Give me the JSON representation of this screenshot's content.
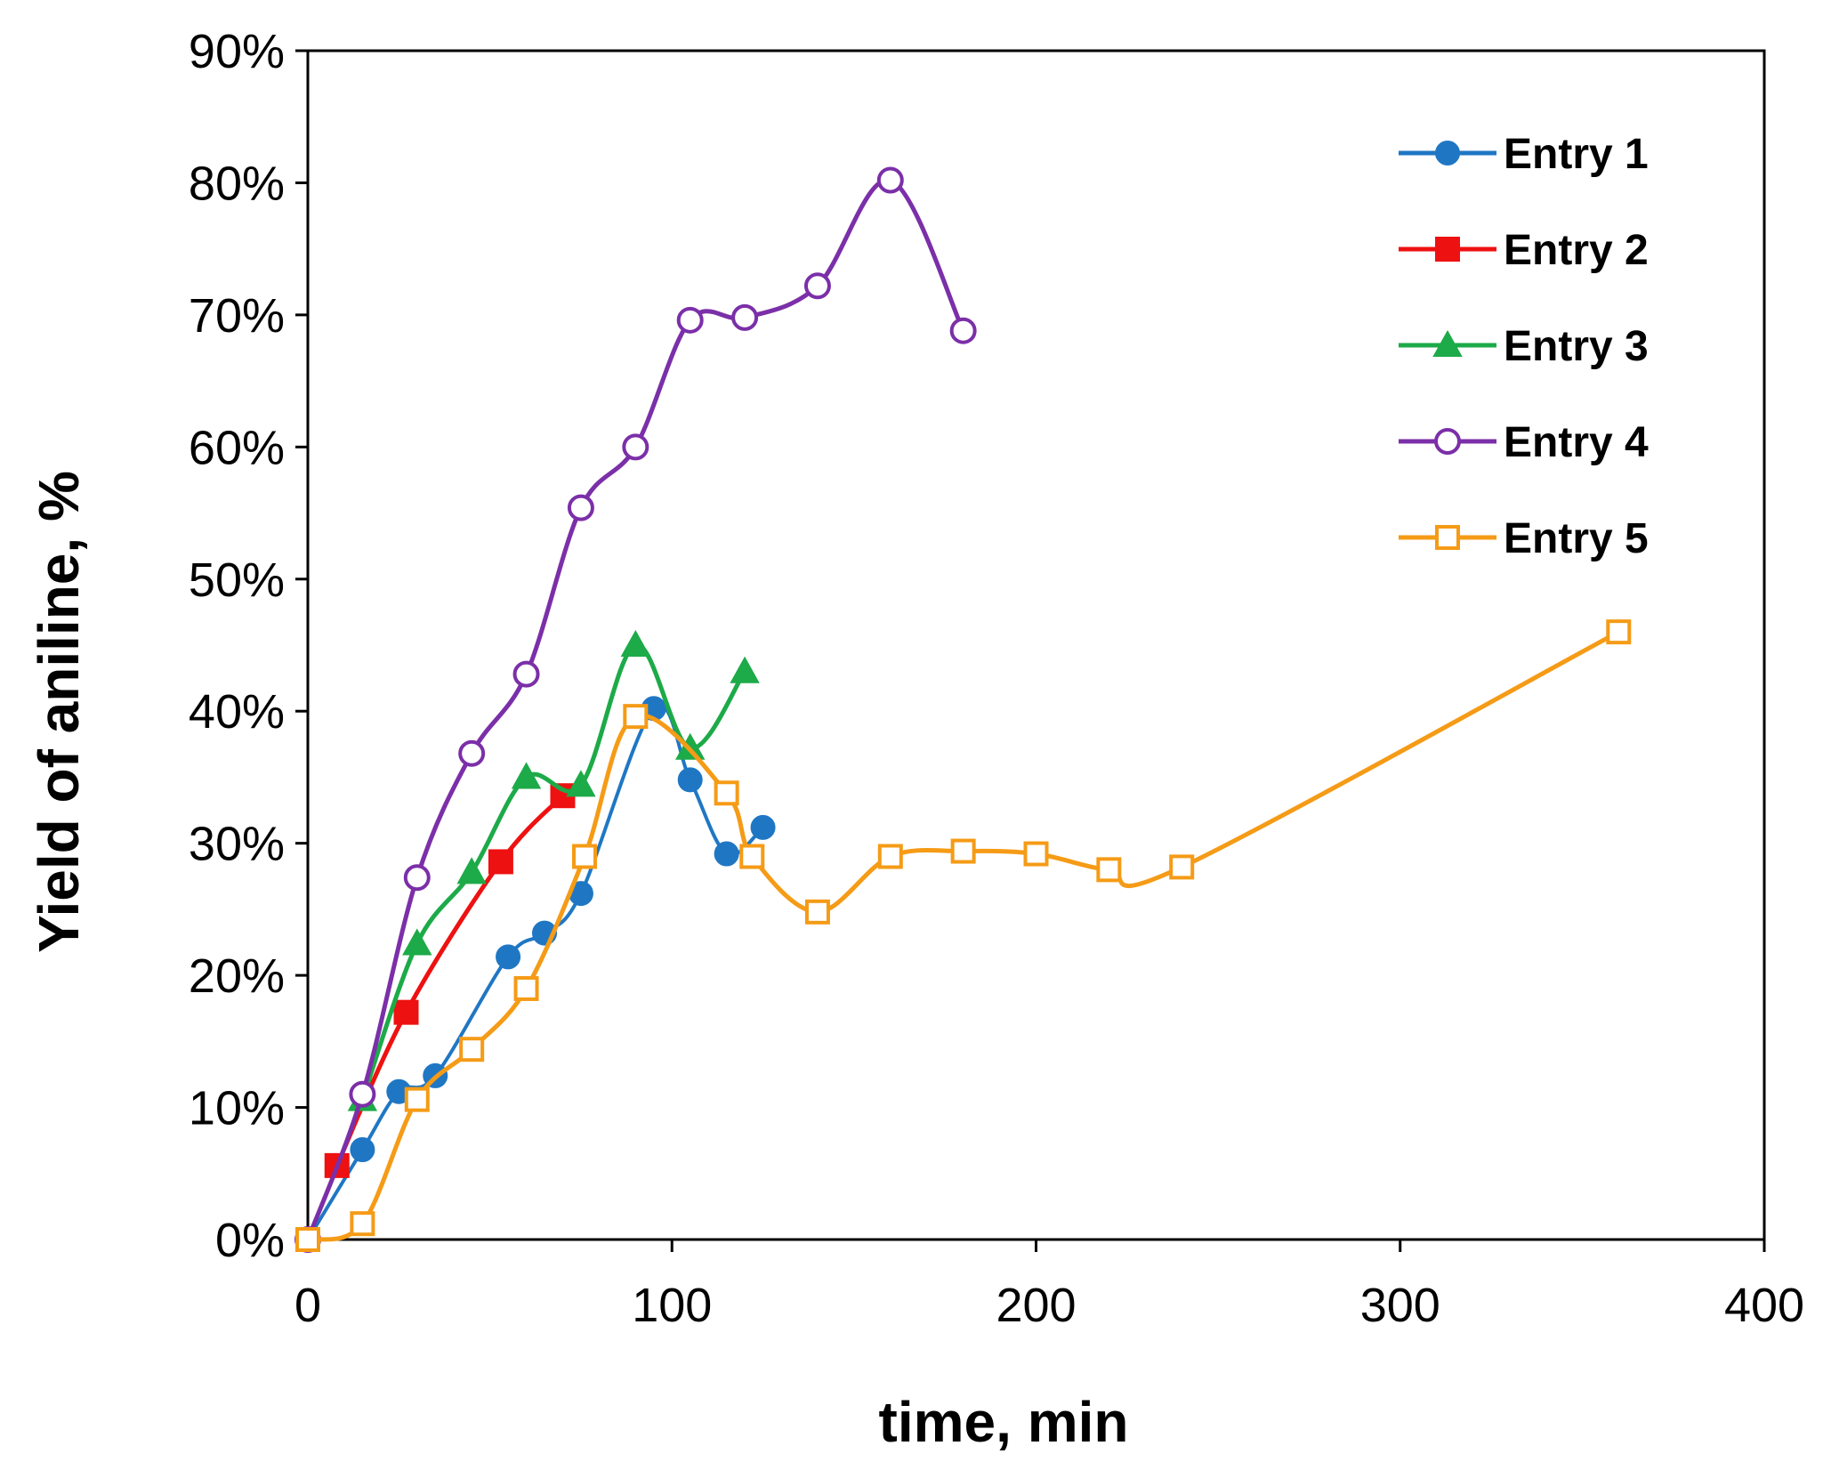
{
  "chart_data": {
    "type": "line",
    "title": "",
    "xlabel": "time, min",
    "ylabel": "Yield of aniline, %",
    "xlim": [
      0,
      400
    ],
    "ylim": [
      0,
      90
    ],
    "x_ticks": [
      0,
      100,
      200,
      300,
      400
    ],
    "x_tick_labels": [
      "0",
      "100",
      "200",
      "300",
      "400"
    ],
    "y_ticks": [
      0,
      10,
      20,
      30,
      40,
      50,
      60,
      70,
      80,
      90
    ],
    "y_tick_labels": [
      "0%",
      "10%",
      "20%",
      "30%",
      "40%",
      "50%",
      "60%",
      "70%",
      "80%",
      "90%"
    ],
    "grid": false,
    "legend_position": "top-right",
    "series": [
      {
        "name": "Entry 1",
        "color": "#1f77c4",
        "marker": "circle-filled",
        "x": [
          0,
          15,
          25,
          35,
          55,
          65,
          75,
          95,
          105,
          115,
          125
        ],
        "y": [
          0,
          6.8,
          11.2,
          12.4,
          21.4,
          23.2,
          26.2,
          40.2,
          34.8,
          29.2,
          31.2
        ]
      },
      {
        "name": "Entry 2",
        "color": "#ee1111",
        "marker": "square-filled",
        "x": [
          8,
          27,
          53,
          70
        ],
        "y": [
          5.6,
          17.2,
          28.6,
          33.6
        ]
      },
      {
        "name": "Entry 3",
        "color": "#1daa48",
        "marker": "triangle-filled",
        "x": [
          15,
          30,
          45,
          60,
          75,
          90,
          105,
          120
        ],
        "y": [
          10.6,
          22.4,
          27.8,
          35.0,
          34.4,
          45.0,
          37.2,
          43.0
        ]
      },
      {
        "name": "Entry 4",
        "color": "#7b2fa8",
        "marker": "circle-open",
        "x": [
          0,
          15,
          30,
          45,
          60,
          75,
          90,
          105,
          120,
          140,
          160,
          180
        ],
        "y": [
          0,
          11.0,
          27.4,
          36.8,
          42.8,
          55.4,
          60.0,
          69.6,
          69.8,
          72.2,
          80.2,
          68.8
        ]
      },
      {
        "name": "Entry 5",
        "color": "#f59b16",
        "marker": "square-open",
        "x": [
          0,
          15,
          30,
          45,
          60,
          76,
          90,
          115,
          122,
          140,
          160,
          180,
          200,
          220,
          240,
          360
        ],
        "y": [
          0,
          1.2,
          10.6,
          14.4,
          19.0,
          29.0,
          39.6,
          33.8,
          29.0,
          24.8,
          29.0,
          29.4,
          29.2,
          28.0,
          28.2,
          46.0
        ]
      }
    ]
  }
}
